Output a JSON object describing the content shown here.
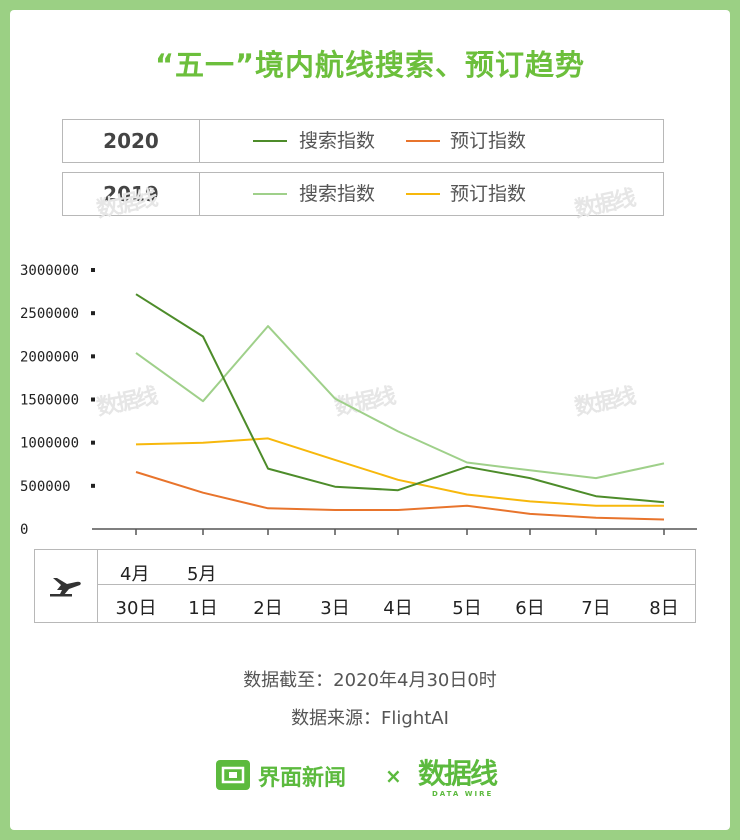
{
  "title": "“五一”境内航线搜索、预订趋势",
  "legend": {
    "rows": [
      {
        "year": "2020",
        "items": [
          {
            "label": "搜索指数",
            "color": "#4d8c2a"
          },
          {
            "label": "预订指数",
            "color": "#e8742c"
          }
        ]
      },
      {
        "year": "2019",
        "items": [
          {
            "label": "搜索指数",
            "color": "#9fd08a"
          },
          {
            "label": "预订指数",
            "color": "#f7b80c"
          }
        ]
      }
    ]
  },
  "chart_data": {
    "type": "line",
    "x": [
      "30日",
      "1日",
      "2日",
      "3日",
      "4日",
      "5日",
      "6日",
      "7日",
      "8日"
    ],
    "months": [
      {
        "label": "4月",
        "at": "30日"
      },
      {
        "label": "5月",
        "at": "1日"
      }
    ],
    "ylim": [
      0,
      3000000
    ],
    "yticks": [
      "0",
      "500000",
      "1000000",
      "1500000",
      "2000000",
      "2500000",
      "3000000"
    ],
    "series": [
      {
        "name": "2020 搜索指数",
        "color": "#4d8c2a",
        "values": [
          2720000,
          2230000,
          700000,
          490000,
          450000,
          720000,
          590000,
          380000,
          310000
        ]
      },
      {
        "name": "2020 预订指数",
        "color": "#e8742c",
        "values": [
          660000,
          420000,
          240000,
          220000,
          220000,
          270000,
          175000,
          130000,
          110000
        ]
      },
      {
        "name": "2019 搜索指数",
        "color": "#9fd08a",
        "values": [
          2040000,
          1480000,
          2350000,
          1510000,
          1130000,
          770000,
          680000,
          590000,
          760000
        ]
      },
      {
        "name": "2019 预订指数",
        "color": "#f7b80c",
        "values": [
          980000,
          1000000,
          1050000,
          800000,
          570000,
          400000,
          320000,
          270000,
          270000
        ]
      }
    ]
  },
  "axis_icon": "airplane-icon",
  "notes": {
    "cutoff": "数据截至：2020年4月30日0时",
    "source": "数据来源：FlightAI"
  },
  "footer": {
    "brand": "界面新闻",
    "times": "×",
    "partner": "数据线",
    "partner_sub": "DATA WIRE",
    "brand_color": "#5cba3e"
  },
  "watermark": "数据线"
}
